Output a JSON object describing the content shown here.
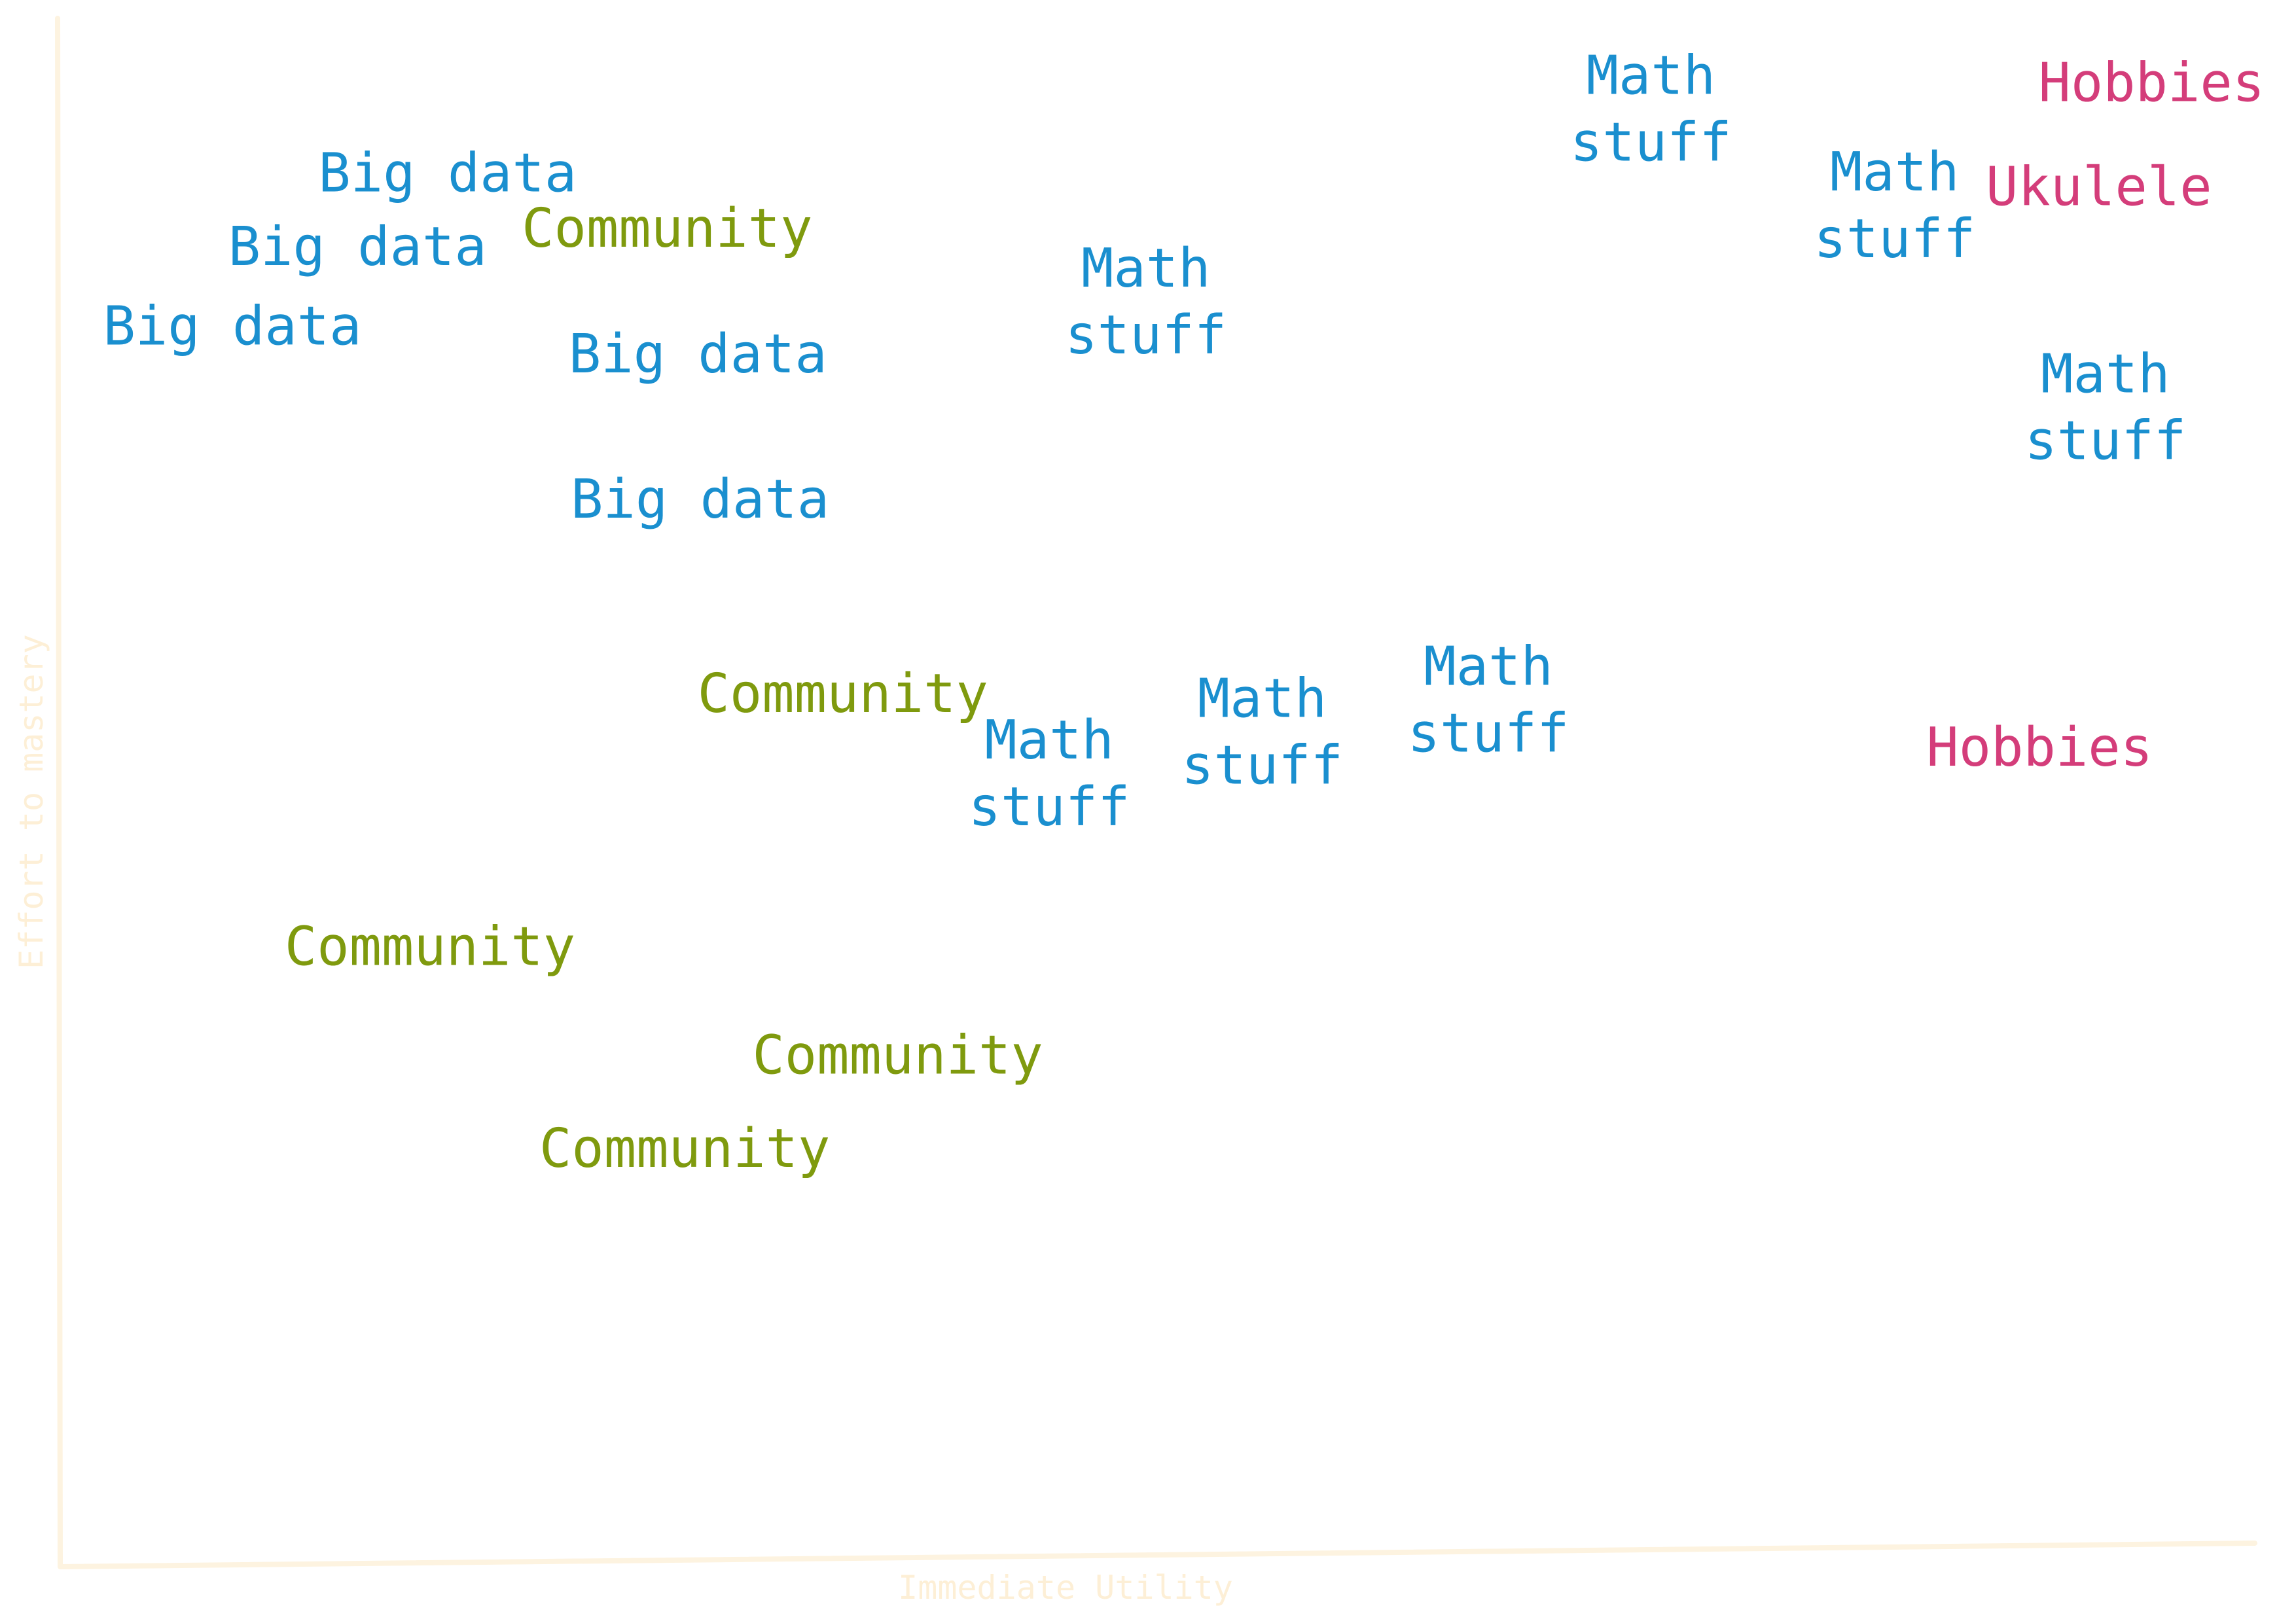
{
  "chart_data": {
    "type": "scatter",
    "title": "",
    "xlabel": "Immediate Utility",
    "ylabel": "Effort to mastery",
    "xlim": [
      0,
      100
    ],
    "ylim": [
      0,
      100
    ],
    "grid": false,
    "legend": "none",
    "colors": {
      "axis": "#fdf3e0",
      "axis_text": "#fdefd6",
      "Big data": "#1a8fcf",
      "Math stuff": "#1a8fcf",
      "Community": "#7f9a0e",
      "Hobbies": "#d43d7a",
      "Ukulele": "#d43d7a"
    },
    "points": [
      {
        "label": "Big data",
        "x": 17.7,
        "y": 90.4
      },
      {
        "label": "Big data",
        "x": 13.6,
        "y": 85.6
      },
      {
        "label": "Big data",
        "x": 7.9,
        "y": 80.4
      },
      {
        "label": "Big data",
        "x": 29.1,
        "y": 78.6
      },
      {
        "label": "Big data",
        "x": 29.2,
        "y": 69.1
      },
      {
        "label": "Community",
        "x": 27.7,
        "y": 86.8
      },
      {
        "label": "Community",
        "x": 35.7,
        "y": 56.4
      },
      {
        "label": "Community",
        "x": 16.9,
        "y": 39.9
      },
      {
        "label": "Community",
        "x": 38.2,
        "y": 32.8
      },
      {
        "label": "Community",
        "x": 28.5,
        "y": 26.7
      },
      {
        "label": "Math stuff",
        "x": 72.5,
        "y": 94.6
      },
      {
        "label": "Math stuff",
        "x": 83.6,
        "y": 88.3
      },
      {
        "label": "Math stuff",
        "x": 49.5,
        "y": 82.0
      },
      {
        "label": "Math stuff",
        "x": 93.2,
        "y": 75.1
      },
      {
        "label": "Math stuff",
        "x": 45.1,
        "y": 51.2
      },
      {
        "label": "Math stuff",
        "x": 54.8,
        "y": 53.9
      },
      {
        "label": "Math stuff",
        "x": 65.1,
        "y": 56.0
      },
      {
        "label": "Hobbies",
        "x": 95.3,
        "y": 96.3
      },
      {
        "label": "Ukulele",
        "x": 92.9,
        "y": 89.5
      },
      {
        "label": "Hobbies",
        "x": 90.2,
        "y": 52.9
      }
    ]
  }
}
